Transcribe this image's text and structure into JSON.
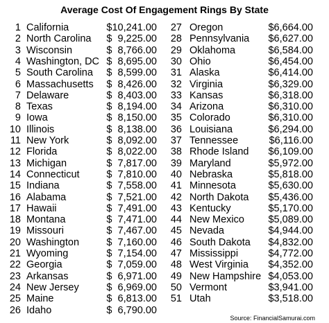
{
  "title": "Average Cost Of Engagement Rings By State",
  "left_rows": [
    [
      1,
      "California",
      "$10,241.00"
    ],
    [
      2,
      "North Carolina",
      "$  9,225.00"
    ],
    [
      3,
      "Wisconsin",
      "$  8,766.00"
    ],
    [
      4,
      "Washington, DC",
      "$  8,695.00"
    ],
    [
      5,
      "South Carolina",
      "$  8,599.00"
    ],
    [
      6,
      "Massachusetts",
      "$  8,426.00"
    ],
    [
      7,
      "Delaware",
      "$  8,403.00"
    ],
    [
      8,
      "Texas",
      "$  8,194.00"
    ],
    [
      9,
      "Iowa",
      "$  8,150.00"
    ],
    [
      10,
      "Illinois",
      "$  8,138.00"
    ],
    [
      11,
      "New York",
      "$  8,092.00"
    ],
    [
      12,
      "Florida",
      "$  8,022.00"
    ],
    [
      13,
      "Michigan",
      "$  7,817.00"
    ],
    [
      14,
      "Connecticut",
      "$  7,810.00"
    ],
    [
      15,
      "Indiana",
      "$  7,558.00"
    ],
    [
      16,
      "Alabama",
      "$  7,521.00"
    ],
    [
      17,
      "Hawaii",
      "$  7,491.00"
    ],
    [
      18,
      "Montana",
      "$  7,471.00"
    ],
    [
      19,
      "Missouri",
      "$  7,467.00"
    ],
    [
      20,
      "Washington",
      "$  7,160.00"
    ],
    [
      21,
      "Wyoming",
      "$  7,154.00"
    ],
    [
      22,
      "Georgia",
      "$  7,059.00"
    ],
    [
      23,
      "Arkansas",
      "$  6,971.00"
    ],
    [
      24,
      "New Jersey",
      "$  6,969.00"
    ],
    [
      25,
      "Maine",
      "$  6,813.00"
    ],
    [
      26,
      "Idaho",
      "$  6,790.00"
    ]
  ],
  "right_rows": [
    [
      27,
      "Oregon",
      "$6,664.00"
    ],
    [
      28,
      "Pennsylvania",
      "$6,627.00"
    ],
    [
      29,
      "Oklahoma",
      "$6,584.00"
    ],
    [
      30,
      "Ohio",
      "$6,454.00"
    ],
    [
      31,
      "Alaska",
      "$6,414.00"
    ],
    [
      32,
      "Virginia",
      "$6,329.00"
    ],
    [
      33,
      "Kansas",
      "$6,318.00"
    ],
    [
      34,
      "Arizona",
      "$6,310.00"
    ],
    [
      35,
      "Colorado",
      "$6,310.00"
    ],
    [
      36,
      "Louisiana",
      "$6,294.00"
    ],
    [
      37,
      "Tennessee",
      "$6,116.00"
    ],
    [
      38,
      "Rhode Island",
      "$6,109.00"
    ],
    [
      39,
      "Maryland",
      "$5,972.00"
    ],
    [
      40,
      "Nebraska",
      "$5,818.00"
    ],
    [
      41,
      "Minnesota",
      "$5,630.00"
    ],
    [
      42,
      "North Dakota",
      "$5,436.00"
    ],
    [
      43,
      "Kentucky",
      "$5,170.00"
    ],
    [
      44,
      "New Mexico",
      "$5,089.00"
    ],
    [
      45,
      "Nevada",
      "$4,944.00"
    ],
    [
      46,
      "South Dakota",
      "$4,832.00"
    ],
    [
      47,
      "Mississippi",
      "$4,772.00"
    ],
    [
      48,
      "West Virginia",
      "$4,352.00"
    ],
    [
      49,
      "New Hampshire",
      "$4,053.00"
    ],
    [
      50,
      "Vermont",
      "$3,941.00"
    ],
    [
      51,
      "Utah",
      "$3,518.00"
    ]
  ],
  "source": "Source: FinancialSamurai.com"
}
